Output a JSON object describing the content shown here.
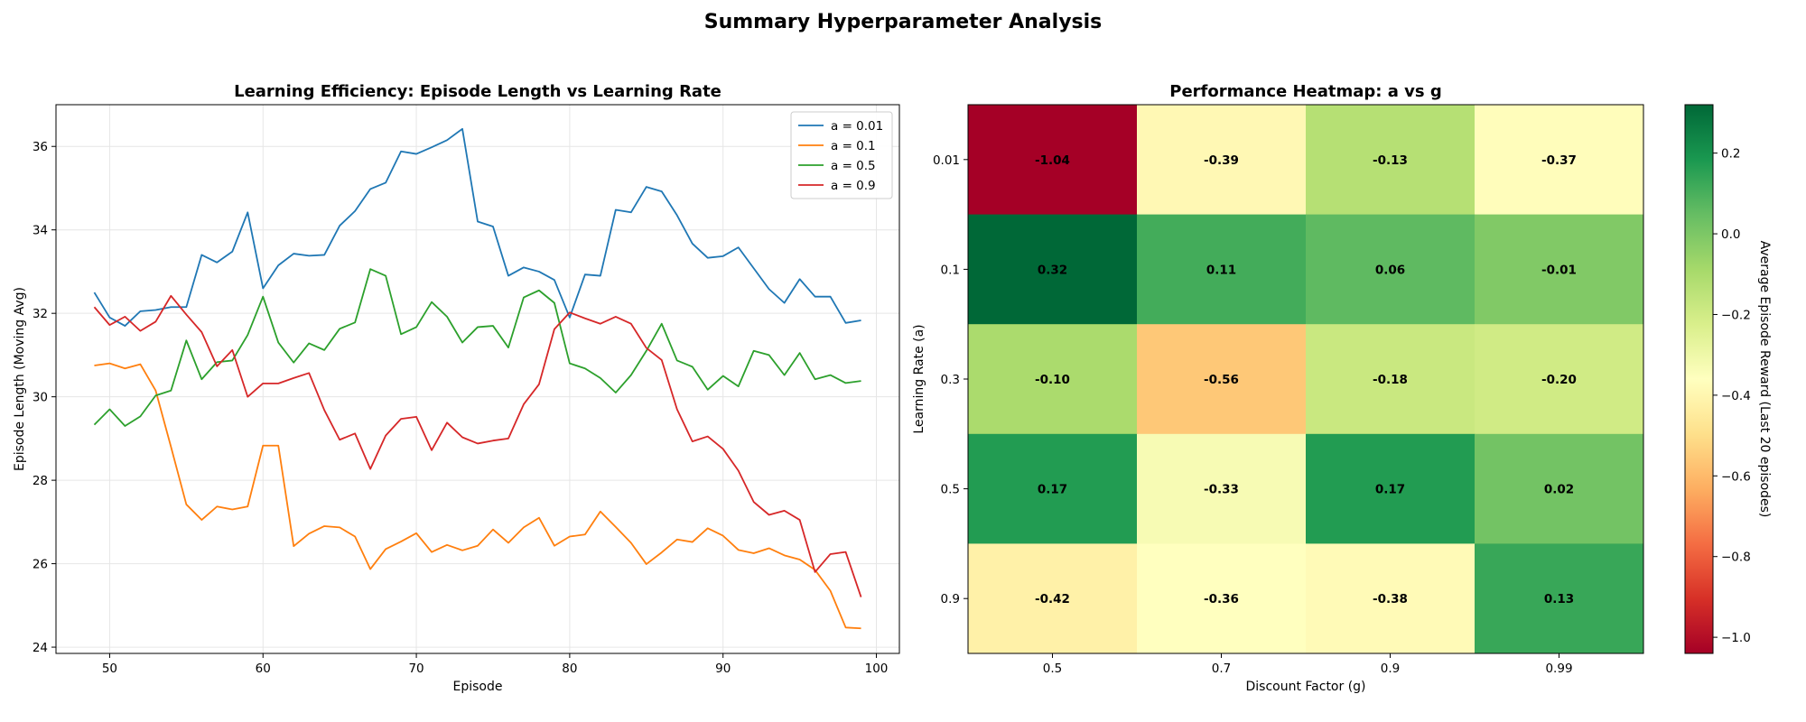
{
  "title": "Summary Hyperparameter Analysis",
  "chart_data": [
    {
      "type": "line",
      "title": "Learning Efficiency: Episode Length vs Learning Rate",
      "xlabel": "Episode",
      "ylabel": "Episode Length (Moving Avg)",
      "xlim": [
        46.5,
        101.5
      ],
      "ylim": [
        23.85,
        37.0
      ],
      "xticks": [
        50,
        60,
        70,
        80,
        90,
        100
      ],
      "yticks": [
        24,
        26,
        28,
        30,
        32,
        34,
        36
      ],
      "grid": true,
      "legend": "top-right",
      "x_start": 49,
      "series": [
        {
          "name": "a = 0.01",
          "color": "#1f77b4",
          "values": [
            32.5,
            31.9,
            31.7,
            32.05,
            32.08,
            32.15,
            32.15,
            33.4,
            33.22,
            33.48,
            34.42,
            32.6,
            33.15,
            33.43,
            33.38,
            33.4,
            34.1,
            34.45,
            34.98,
            35.13,
            35.88,
            35.82,
            35.98,
            36.15,
            36.42,
            34.2,
            34.08,
            32.9,
            33.1,
            33.0,
            32.8,
            31.9,
            32.93,
            32.9,
            34.48,
            34.42,
            35.03,
            34.92,
            34.35,
            33.67,
            33.33,
            33.37,
            33.58,
            33.08,
            32.58,
            32.25,
            32.82,
            32.4,
            32.4,
            31.77,
            31.83
          ]
        },
        {
          "name": "a = 0.1",
          "color": "#ff7f0e",
          "values": [
            30.75,
            30.8,
            30.68,
            30.78,
            30.15,
            28.8,
            27.42,
            27.05,
            27.37,
            27.3,
            27.37,
            28.83,
            28.83,
            26.42,
            26.72,
            26.9,
            26.87,
            26.65,
            25.87,
            26.35,
            26.53,
            26.73,
            26.28,
            26.45,
            26.32,
            26.43,
            26.82,
            26.5,
            26.87,
            27.1,
            26.43,
            26.65,
            26.7,
            27.25,
            26.88,
            26.5,
            25.99,
            26.27,
            26.58,
            26.52,
            26.85,
            26.67,
            26.33,
            26.25,
            26.37,
            26.2,
            26.1,
            25.85,
            25.35,
            24.47,
            24.45
          ]
        },
        {
          "name": "a = 0.5",
          "color": "#2ca02c",
          "values": [
            29.33,
            29.7,
            29.3,
            29.53,
            30.03,
            30.15,
            31.35,
            30.42,
            30.83,
            30.87,
            31.48,
            32.4,
            31.3,
            30.82,
            31.28,
            31.12,
            31.63,
            31.78,
            33.06,
            32.9,
            31.5,
            31.67,
            32.27,
            31.92,
            31.3,
            31.67,
            31.7,
            31.18,
            32.38,
            32.55,
            32.25,
            30.8,
            30.68,
            30.45,
            30.1,
            30.52,
            31.1,
            31.75,
            30.87,
            30.72,
            30.17,
            30.5,
            30.25,
            31.1,
            31.0,
            30.52,
            31.05,
            30.42,
            30.52,
            30.33,
            30.38
          ]
        },
        {
          "name": "a = 0.9",
          "color": "#d62728",
          "values": [
            32.15,
            31.72,
            31.92,
            31.58,
            31.8,
            32.42,
            31.97,
            31.55,
            30.73,
            31.12,
            30.0,
            30.32,
            30.32,
            30.45,
            30.57,
            29.68,
            28.97,
            29.12,
            28.27,
            29.07,
            29.47,
            29.52,
            28.72,
            29.38,
            29.03,
            28.88,
            28.95,
            29.0,
            29.82,
            30.3,
            31.62,
            32.02,
            31.88,
            31.75,
            31.92,
            31.75,
            31.17,
            30.88,
            29.7,
            28.93,
            29.05,
            28.75,
            28.23,
            27.48,
            27.17,
            27.27,
            27.05,
            25.8,
            26.23,
            26.28,
            25.2
          ]
        }
      ]
    },
    {
      "type": "heatmap",
      "title": "Performance Heatmap: a vs g",
      "xlabel": "Discount Factor (g)",
      "ylabel": "Learning Rate (a)",
      "x_categories": [
        "0.5",
        "0.7",
        "0.9",
        "0.99"
      ],
      "y_categories": [
        "0.01",
        "0.1",
        "0.3",
        "0.5",
        "0.9"
      ],
      "values": [
        [
          -1.04,
          -0.39,
          -0.13,
          -0.37
        ],
        [
          0.32,
          0.11,
          0.06,
          -0.01
        ],
        [
          -0.1,
          -0.56,
          -0.18,
          -0.2
        ],
        [
          0.17,
          -0.33,
          0.17,
          0.02
        ],
        [
          -0.42,
          -0.36,
          -0.38,
          0.13
        ]
      ],
      "value_labels": [
        [
          "-1.04",
          "-0.39",
          "-0.13",
          "-0.37"
        ],
        [
          "0.32",
          "0.11",
          "0.06",
          "-0.01"
        ],
        [
          "-0.10",
          "-0.56",
          "-0.18",
          "-0.20"
        ],
        [
          "0.17",
          "-0.33",
          "0.17",
          "0.02"
        ],
        [
          "-0.42",
          "-0.36",
          "-0.38",
          "0.13"
        ]
      ],
      "colormap": "RdYlGn",
      "vmin": -1.04,
      "vmax": 0.32,
      "colorbar": {
        "label": "Average Episode Reward (Last 20 episodes)",
        "ticks": [
          -1.0,
          -0.8,
          -0.6,
          -0.4,
          -0.2,
          0.0,
          0.2
        ],
        "tick_labels": [
          "−1.0",
          "−0.8",
          "−0.6",
          "−0.4",
          "−0.2",
          "0.0",
          "0.2"
        ]
      }
    }
  ]
}
